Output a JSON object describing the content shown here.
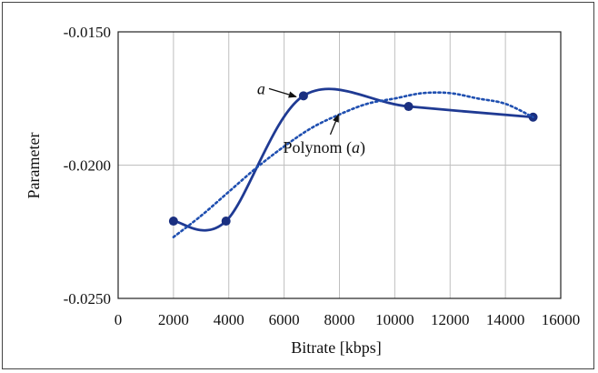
{
  "chart_data": {
    "type": "line",
    "title": "",
    "xlabel": "Bitrate [kbps]",
    "ylabel": "Parameter",
    "xlim": [
      0,
      16000
    ],
    "ylim": [
      -0.025,
      -0.015
    ],
    "x_ticks": [
      "0",
      "2000",
      "4000",
      "6000",
      "8000",
      "10000",
      "12000",
      "14000",
      "16000"
    ],
    "y_ticks": [
      "-0.0150",
      "-0.0200",
      "-0.0250"
    ],
    "grid": true,
    "series": [
      {
        "name": "a",
        "style": "solid",
        "color": "#1f3a93",
        "markers": true,
        "x": [
          2000,
          3900,
          6700,
          10500,
          15000
        ],
        "y": [
          -0.0221,
          -0.0221,
          -0.0174,
          -0.0178,
          -0.0182
        ]
      },
      {
        "name": "Polynom (a)",
        "style": "dotted",
        "color": "#1f4fb0",
        "markers": false,
        "x": [
          2000,
          3000,
          4000,
          5000,
          6000,
          7000,
          8000,
          9000,
          10000,
          11000,
          12000,
          13000,
          14000,
          15000
        ],
        "y": [
          -0.0227,
          -0.0219,
          -0.021,
          -0.0201,
          -0.0193,
          -0.0186,
          -0.0181,
          -0.0177,
          -0.0175,
          -0.0173,
          -0.0173,
          -0.0175,
          -0.0177,
          -0.0182
        ]
      }
    ],
    "annotations": [
      {
        "text_prefix": "",
        "text_italic": "a",
        "text_suffix": "",
        "target": [
          6700,
          -0.0174
        ]
      },
      {
        "text_prefix": "Polynom (",
        "text_italic": "a",
        "text_suffix": ")",
        "target": [
          8000,
          -0.018
        ]
      }
    ]
  }
}
